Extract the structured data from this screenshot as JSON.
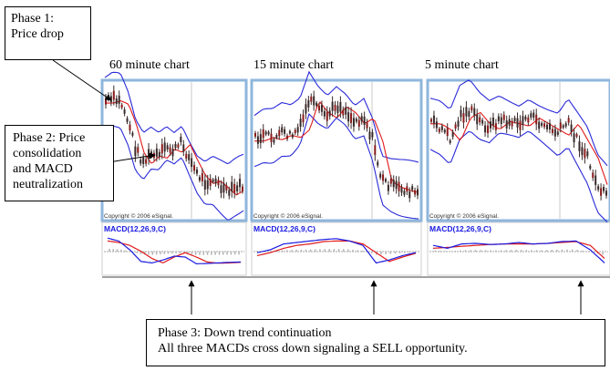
{
  "charts": [
    {
      "title": "60 minute chart",
      "copyright": "Copyright © 2006 eSignal.",
      "indicator_label": "MACD(12,26,9,C)",
      "price_path": [
        0.12,
        0.1,
        0.13,
        0.3,
        0.55,
        0.65,
        0.58,
        0.6,
        0.52,
        0.55,
        0.48,
        0.62,
        0.75,
        0.82,
        0.8,
        0.86,
        0.92,
        0.88,
        0.85
      ],
      "macd_path": [
        0.1,
        0.2,
        0.5,
        0.9,
        0.95,
        0.85,
        0.72,
        0.75,
        0.98,
        0.97,
        0.95,
        0.93,
        0.92
      ],
      "signal_path": [
        0.2,
        0.25,
        0.35,
        0.55,
        0.8,
        0.95,
        0.75,
        0.6,
        0.75,
        0.92,
        0.96,
        0.95,
        0.93
      ]
    },
    {
      "title": "15 minute chart",
      "copyright": "Copyright © 2006 eSignal.",
      "indicator_label": "MACD(12,26,9,C)",
      "price_path": [
        0.45,
        0.42,
        0.44,
        0.4,
        0.42,
        0.35,
        0.1,
        0.2,
        0.25,
        0.15,
        0.2,
        0.3,
        0.25,
        0.45,
        0.8,
        0.85,
        0.88,
        0.9,
        0.92
      ],
      "macd_path": [
        0.6,
        0.5,
        0.3,
        0.25,
        0.2,
        0.15,
        0.12,
        0.2,
        0.35,
        0.95,
        0.85,
        0.7,
        0.6
      ],
      "signal_path": [
        0.7,
        0.6,
        0.45,
        0.35,
        0.3,
        0.22,
        0.2,
        0.2,
        0.3,
        0.6,
        0.9,
        0.75,
        0.62
      ]
    },
    {
      "title": "5 minute chart",
      "copyright": "Copyright © 2006 eSignal.",
      "indicator_label": "MACD(12,26,9,C)",
      "price_path": [
        0.3,
        0.35,
        0.45,
        0.25,
        0.2,
        0.3,
        0.35,
        0.28,
        0.3,
        0.32,
        0.25,
        0.3,
        0.35,
        0.4,
        0.3,
        0.45,
        0.6,
        0.85,
        0.95
      ],
      "macd_path": [
        0.35,
        0.45,
        0.3,
        0.28,
        0.32,
        0.3,
        0.25,
        0.3,
        0.28,
        0.22,
        0.2,
        0.5,
        0.95
      ],
      "signal_path": [
        0.45,
        0.42,
        0.38,
        0.35,
        0.32,
        0.3,
        0.3,
        0.3,
        0.28,
        0.25,
        0.22,
        0.35,
        0.8
      ]
    }
  ],
  "callouts": {
    "phase1": [
      "Phase 1:",
      "Price drop"
    ],
    "phase2": [
      "Phase 2: Price",
      "consolidation",
      "and MACD",
      "neutralization"
    ],
    "phase3": [
      "Phase 3: Down trend continuation",
      "All three MACDs cross down signaling a SELL opportunity."
    ]
  },
  "colors": {
    "bollinger": "#2a2ad9",
    "moving_average": "#e01a1a",
    "macd_line": "#1a1ae0",
    "signal_line": "#e01a1a",
    "candles": "#3a2a2a",
    "panel_border": "#8fb6dc"
  },
  "chart_data": {
    "type": "line",
    "title": "",
    "panels": [
      "60 minute chart",
      "15 minute chart",
      "5 minute chart"
    ],
    "indicator": "MACD(12,26,9,C)",
    "xlabel": "",
    "ylabel": ""
  }
}
